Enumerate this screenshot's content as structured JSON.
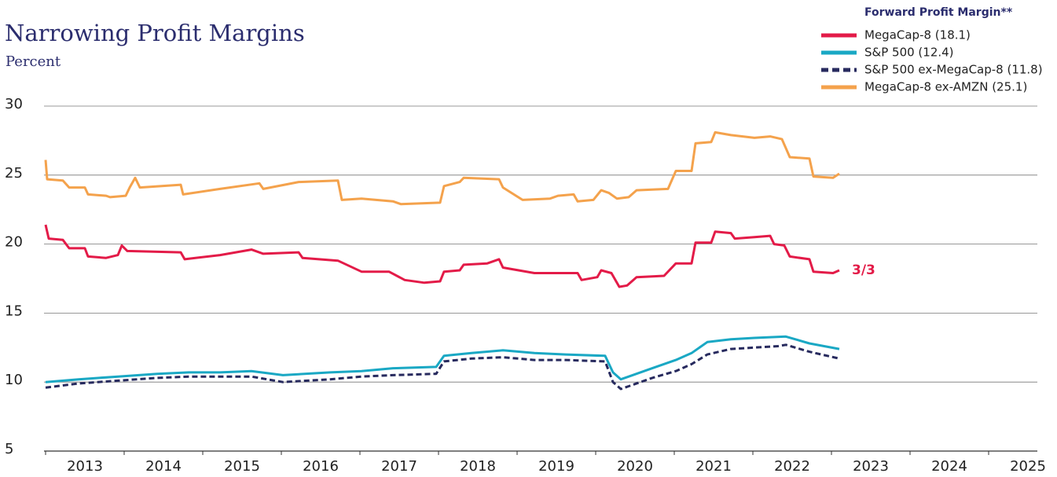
{
  "chart_data": {
    "type": "line",
    "title": "Narrowing Profit Margins",
    "subtitle": "Percent",
    "legend_title": "Forward Profit Margin**",
    "legend": "top-right",
    "annotation": "3/3",
    "grid": true,
    "xlim": [
      2013,
      2025.62
    ],
    "xticks": [
      2013,
      2014,
      2015,
      2016,
      2017,
      2018,
      2019,
      2020,
      2021,
      2022,
      2023,
      2024,
      2025
    ],
    "ylim": [
      5,
      30
    ],
    "yticks": [
      5,
      10,
      15,
      20,
      25,
      30
    ],
    "series": [
      {
        "name": "MegaCap-8 (18.1)",
        "color": "#e31b48",
        "dash": false,
        "x": [
          2013,
          2013.04,
          2013.22,
          2013.3,
          2013.5,
          2013.54,
          2013.77,
          2013.92,
          2013.97,
          2014.04,
          2014.72,
          2014.77,
          2015.22,
          2015.62,
          2015.77,
          2016.22,
          2016.27,
          2016.72,
          2017.02,
          2017.37,
          2017.57,
          2017.82,
          2018.02,
          2018.07,
          2018.27,
          2018.32,
          2018.62,
          2018.77,
          2018.82,
          2019.02,
          2019.22,
          2019.77,
          2019.82,
          2020.02,
          2020.07,
          2020.2,
          2020.3,
          2020.4,
          2020.52,
          2020.87,
          2021.02,
          2021.22,
          2021.27,
          2021.47,
          2021.52,
          2021.72,
          2021.77,
          2022.02,
          2022.22,
          2022.27,
          2022.4,
          2022.47,
          2022.72,
          2022.77,
          2023.02,
          2023.1
        ],
        "values": [
          21.4,
          20.4,
          20.3,
          19.7,
          19.7,
          19.1,
          19.0,
          19.2,
          19.9,
          19.5,
          19.4,
          18.9,
          19.2,
          19.6,
          19.3,
          19.4,
          19.0,
          18.8,
          18.0,
          18.0,
          17.4,
          17.2,
          17.3,
          18.0,
          18.1,
          18.5,
          18.6,
          18.9,
          18.3,
          18.1,
          17.9,
          17.9,
          17.4,
          17.6,
          18.1,
          17.9,
          16.9,
          17.0,
          17.6,
          17.7,
          18.6,
          18.6,
          20.1,
          20.1,
          20.9,
          20.8,
          20.4,
          20.5,
          20.6,
          20.0,
          19.9,
          19.1,
          18.9,
          18.0,
          17.9,
          18.1
        ]
      },
      {
        "name": "S&P 500 (12.4)",
        "color": "#1aa8c4",
        "dash": false,
        "x": [
          2013,
          2013.42,
          2013.92,
          2014.42,
          2014.82,
          2015.22,
          2015.62,
          2016.02,
          2016.62,
          2017.02,
          2017.42,
          2017.97,
          2018.07,
          2018.42,
          2018.82,
          2019.22,
          2019.62,
          2020.12,
          2020.22,
          2020.32,
          2020.42,
          2020.72,
          2021.02,
          2021.22,
          2021.42,
          2021.72,
          2022.02,
          2022.42,
          2022.72,
          2023.1
        ],
        "values": [
          10.0,
          10.2,
          10.4,
          10.6,
          10.7,
          10.7,
          10.8,
          10.5,
          10.7,
          10.8,
          11.0,
          11.1,
          11.9,
          12.1,
          12.3,
          12.1,
          12.0,
          11.9,
          10.7,
          10.2,
          10.4,
          11.0,
          11.6,
          12.1,
          12.9,
          13.1,
          13.2,
          13.3,
          12.8,
          12.4
        ]
      },
      {
        "name": "S&P 500 ex-MegaCap-8 (11.8)",
        "color": "#272a5e",
        "dash": true,
        "x": [
          2013,
          2013.42,
          2013.92,
          2014.42,
          2014.82,
          2015.22,
          2015.62,
          2016.02,
          2016.62,
          2017.02,
          2017.42,
          2017.97,
          2018.07,
          2018.42,
          2018.82,
          2019.22,
          2019.62,
          2020.12,
          2020.22,
          2020.32,
          2020.42,
          2020.72,
          2021.02,
          2021.22,
          2021.42,
          2021.72,
          2022.02,
          2022.32,
          2022.42,
          2022.72,
          2023.1
        ],
        "values": [
          9.6,
          9.9,
          10.1,
          10.3,
          10.4,
          10.4,
          10.4,
          10.0,
          10.2,
          10.4,
          10.5,
          10.6,
          11.5,
          11.7,
          11.8,
          11.6,
          11.6,
          11.5,
          10.0,
          9.5,
          9.7,
          10.3,
          10.8,
          11.3,
          12.0,
          12.4,
          12.5,
          12.6,
          12.7,
          12.2,
          11.7
        ]
      },
      {
        "name": "MegaCap-8 ex-AMZN (25.1)",
        "color": "#f4a24c",
        "dash": false,
        "x": [
          2013,
          2013.02,
          2013.22,
          2013.3,
          2013.5,
          2013.54,
          2013.77,
          2013.82,
          2014.02,
          2014.07,
          2014.14,
          2014.2,
          2014.72,
          2014.75,
          2015.22,
          2015.72,
          2015.77,
          2016.22,
          2016.72,
          2016.77,
          2017.02,
          2017.42,
          2017.52,
          2018.02,
          2018.07,
          2018.27,
          2018.32,
          2018.77,
          2018.82,
          2019.07,
          2019.42,
          2019.52,
          2019.72,
          2019.77,
          2019.97,
          2020.07,
          2020.17,
          2020.27,
          2020.42,
          2020.52,
          2020.92,
          2021.02,
          2021.22,
          2021.27,
          2021.47,
          2021.52,
          2021.72,
          2022.02,
          2022.22,
          2022.37,
          2022.47,
          2022.72,
          2022.77,
          2023.02,
          2023.1
        ],
        "values": [
          26.1,
          24.7,
          24.6,
          24.1,
          24.1,
          23.6,
          23.5,
          23.4,
          23.5,
          24.1,
          24.8,
          24.1,
          24.3,
          23.6,
          24.0,
          24.4,
          24.0,
          24.5,
          24.6,
          23.2,
          23.3,
          23.1,
          22.9,
          23.0,
          24.2,
          24.5,
          24.8,
          24.7,
          24.1,
          23.2,
          23.3,
          23.5,
          23.6,
          23.1,
          23.2,
          23.9,
          23.7,
          23.3,
          23.4,
          23.9,
          24.0,
          25.3,
          25.3,
          27.3,
          27.4,
          28.1,
          27.9,
          27.7,
          27.8,
          27.6,
          26.3,
          26.2,
          24.9,
          24.8,
          25.1
        ]
      }
    ]
  }
}
